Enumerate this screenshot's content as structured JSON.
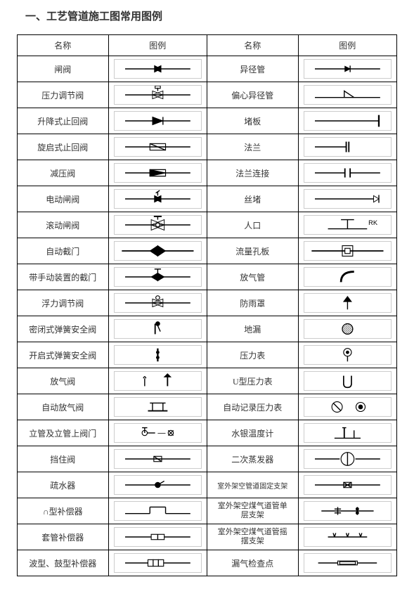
{
  "page_title": "一、工艺管道施工图常用图例",
  "headers": {
    "name1": "名称",
    "symbol1": "图例",
    "name2": "名称",
    "symbol2": "图例"
  },
  "rows": [
    {
      "left_name": "闸阀",
      "left_symbol": "gate-valve",
      "right_name": "异径管",
      "right_symbol": "reducer"
    },
    {
      "left_name": "压力调节阀",
      "left_symbol": "pressure-regulating-valve",
      "right_name": "偏心异径管",
      "right_symbol": "eccentric-reducer"
    },
    {
      "left_name": "升降式止回阀",
      "left_symbol": "lift-check-valve",
      "right_name": "堵板",
      "right_symbol": "blind-plate"
    },
    {
      "left_name": "旋启式止回阀",
      "left_symbol": "swing-check-valve",
      "right_name": "法兰",
      "right_symbol": "flange"
    },
    {
      "left_name": "减压阀",
      "left_symbol": "reducing-valve",
      "right_name": "法兰连接",
      "right_symbol": "flange-connection"
    },
    {
      "left_name": "电动闸阀",
      "left_symbol": "electric-gate-valve",
      "right_name": "丝堵",
      "right_symbol": "screw-plug"
    },
    {
      "left_name": "滚动闸阀",
      "left_symbol": "rolling-gate-valve",
      "right_name": "人口",
      "right_symbol": "manhole"
    },
    {
      "left_name": "自动截门",
      "left_symbol": "auto-cutoff",
      "right_name": "流量孔板",
      "right_symbol": "orifice-plate"
    },
    {
      "left_name": "带手动装置的截门",
      "left_symbol": "manual-cutoff",
      "right_name": "放气管",
      "right_symbol": "vent-pipe"
    },
    {
      "left_name": "浮力调节阀",
      "left_symbol": "float-valve",
      "right_name": "防雨罩",
      "right_symbol": "rain-cover"
    },
    {
      "left_name": "密闭式弹簧安全阀",
      "left_symbol": "closed-spring-safety",
      "right_name": "地漏",
      "right_symbol": "floor-drain"
    },
    {
      "left_name": "开启式弹簧安全阀",
      "left_symbol": "open-spring-safety",
      "right_name": "压力表",
      "right_symbol": "pressure-gauge"
    },
    {
      "left_name": "放气阀",
      "left_symbol": "vent-valve",
      "right_name": "U型压力表",
      "right_symbol": "u-pressure-gauge"
    },
    {
      "left_name": "自动放气阀",
      "left_symbol": "auto-vent-valve",
      "right_name": "自动记录压力表",
      "right_symbol": "recording-pressure"
    },
    {
      "left_name": "立管及立管上阀门",
      "left_symbol": "riser-valve",
      "right_name": "水银温度计",
      "right_symbol": "mercury-thermometer"
    },
    {
      "left_name": "挡住阀",
      "left_symbol": "block-valve",
      "right_name": "二次蒸发器",
      "right_symbol": "secondary-evaporator"
    },
    {
      "left_name": "疏水器",
      "left_symbol": "trap",
      "right_name": "室外架空管道固定支架",
      "right_symbol": "fixed-support",
      "right_small": true
    },
    {
      "left_name": "∩型补偿器",
      "left_symbol": "n-compensator",
      "right_name": "室外架空煤气道管单\n层支架",
      "right_symbol": "single-support",
      "right_two_line": true
    },
    {
      "left_name": "套管补偿器",
      "left_symbol": "sleeve-compensator",
      "right_name": "室外架空煤气道管摇\n摆支架",
      "right_symbol": "swing-support",
      "right_two_line": true
    },
    {
      "left_name": "波型、鼓型补偿器",
      "left_symbol": "wave-compensator",
      "right_name": "漏气检查点",
      "right_symbol": "leak-check"
    }
  ],
  "colors": {
    "stroke": "#000000",
    "bg": "#ffffff",
    "border": "#000000"
  }
}
